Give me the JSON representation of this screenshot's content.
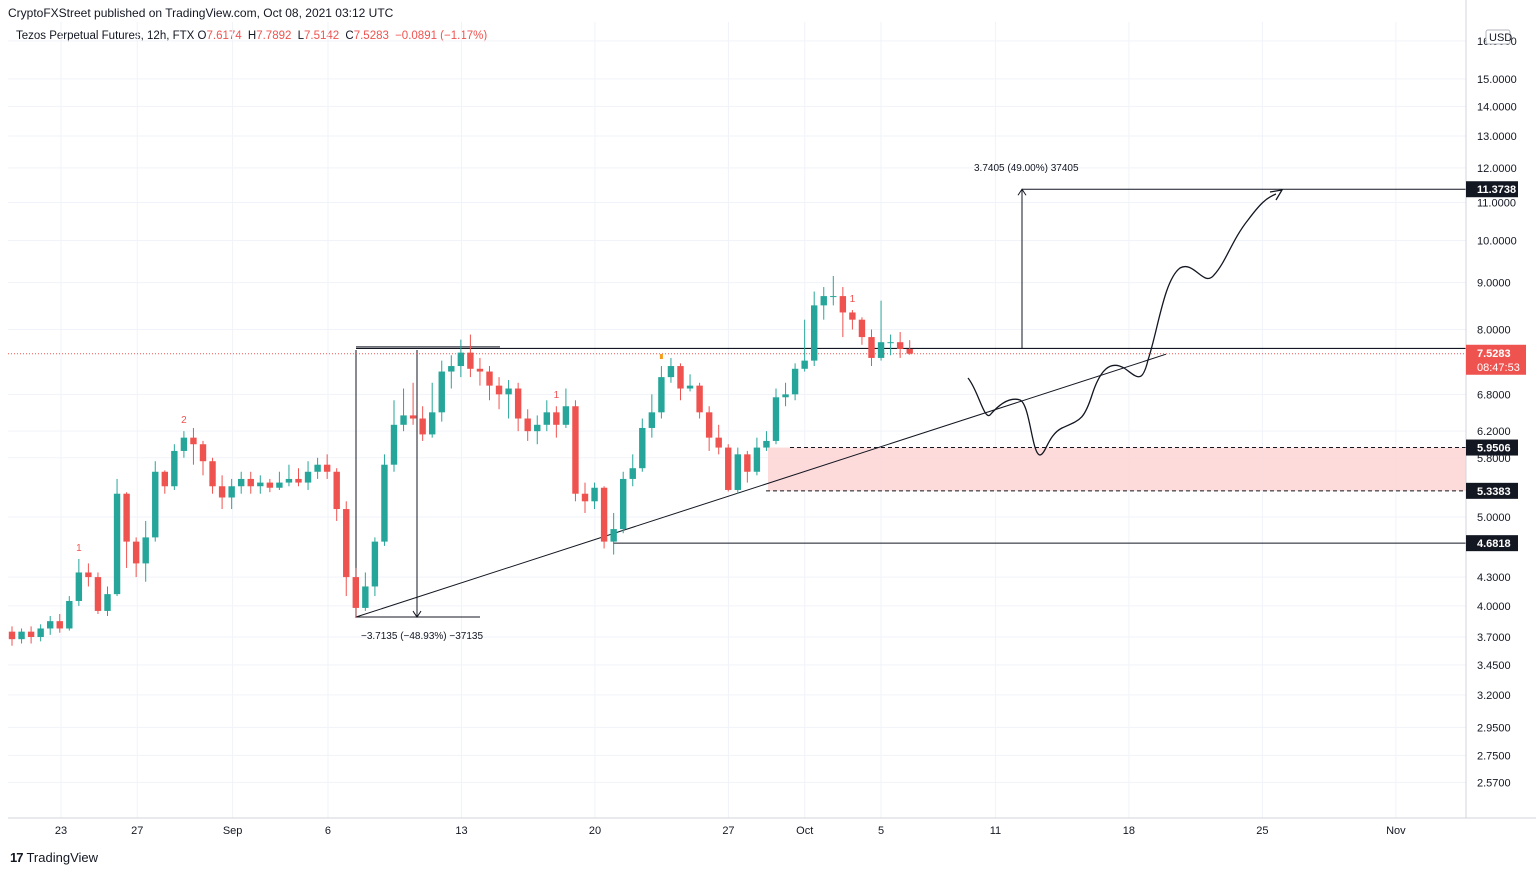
{
  "header": {
    "publisher": "CryptoFXStreet published on TradingView.com, Oct 08, 2021 03:12 UTC"
  },
  "legend": {
    "symbol": "Tezos Perpetual Futures, 12h, FTX",
    "open_label": "O",
    "open": "7.6174",
    "high_label": "H",
    "high": "7.7892",
    "low_label": "L",
    "low": "7.5142",
    "close_label": "C",
    "close": "7.5283",
    "change": "−0.0891 (−1.17%)"
  },
  "footer": {
    "brand": "TradingView",
    "logo_text": "17"
  },
  "colors": {
    "up": "#26a69a",
    "down": "#ef5350",
    "zone": "#fdd5d5",
    "price_line": "#ef5350"
  },
  "chart_data": {
    "type": "candlestick",
    "currency": "USD",
    "y_scale": "log",
    "ylim": [
      2.35,
      17.3
    ],
    "y_ticks": [
      "2.5700",
      "2.7500",
      "2.9500",
      "3.2000",
      "3.4500",
      "3.7000",
      "4.0000",
      "4.3000",
      "4.6818",
      "5.0000",
      "5.3383",
      "5.8000",
      "5.9506",
      "6.2000",
      "6.8000",
      "7.5283",
      "8.0000",
      "9.0000",
      "10.0000",
      "11.0000",
      "11.3738",
      "12.0000",
      "13.0000",
      "14.0000",
      "15.0000",
      "16.5000"
    ],
    "x_ticks": [
      {
        "label": "23",
        "day": 0
      },
      {
        "label": "27",
        "day": 4
      },
      {
        "label": "Sep",
        "day": 9
      },
      {
        "label": "6",
        "day": 14
      },
      {
        "label": "13",
        "day": 21
      },
      {
        "label": "20",
        "day": 28
      },
      {
        "label": "27",
        "day": 35
      },
      {
        "label": "Oct",
        "day": 39
      },
      {
        "label": "5",
        "day": 43
      },
      {
        "label": "11",
        "day": 49
      },
      {
        "label": "18",
        "day": 56
      },
      {
        "label": "25",
        "day": 63
      },
      {
        "label": "Nov",
        "day": 70
      }
    ],
    "candles": [
      [
        3.75,
        3.68,
        3.8,
        3.62
      ],
      [
        3.68,
        3.75,
        3.78,
        3.64
      ],
      [
        3.75,
        3.7,
        3.8,
        3.64
      ],
      [
        3.7,
        3.78,
        3.82,
        3.66
      ],
      [
        3.78,
        3.85,
        3.9,
        3.72
      ],
      [
        3.85,
        3.78,
        3.92,
        3.74
      ],
      [
        3.78,
        4.05,
        4.1,
        3.76
      ],
      [
        4.05,
        4.35,
        4.5,
        4.0
      ],
      [
        4.35,
        4.3,
        4.45,
        4.2
      ],
      [
        4.3,
        3.95,
        4.35,
        3.92
      ],
      [
        3.95,
        4.12,
        4.2,
        3.9
      ],
      [
        4.12,
        5.3,
        5.5,
        4.1
      ],
      [
        5.3,
        4.7,
        5.32,
        4.4
      ],
      [
        4.7,
        4.45,
        4.75,
        4.3
      ],
      [
        4.45,
        4.75,
        4.95,
        4.25
      ],
      [
        4.75,
        5.6,
        5.75,
        4.7
      ],
      [
        5.6,
        5.4,
        5.62,
        5.3
      ],
      [
        5.4,
        5.9,
        6.0,
        5.35
      ],
      [
        5.9,
        6.1,
        6.2,
        5.8
      ],
      [
        6.1,
        6.0,
        6.25,
        5.7
      ],
      [
        6.0,
        5.75,
        6.05,
        5.55
      ],
      [
        5.75,
        5.4,
        5.8,
        5.3
      ],
      [
        5.4,
        5.25,
        5.55,
        5.1
      ],
      [
        5.25,
        5.4,
        5.5,
        5.1
      ],
      [
        5.4,
        5.5,
        5.6,
        5.3
      ],
      [
        5.5,
        5.4,
        5.6,
        5.3
      ],
      [
        5.4,
        5.45,
        5.55,
        5.3
      ],
      [
        5.45,
        5.38,
        5.5,
        5.32
      ],
      [
        5.38,
        5.45,
        5.6,
        5.35
      ],
      [
        5.45,
        5.5,
        5.7,
        5.4
      ],
      [
        5.5,
        5.45,
        5.65,
        5.4
      ],
      [
        5.45,
        5.6,
        5.75,
        5.35
      ],
      [
        5.6,
        5.7,
        5.8,
        5.5
      ],
      [
        5.7,
        5.6,
        5.85,
        5.5
      ],
      [
        5.6,
        5.1,
        5.65,
        4.95
      ],
      [
        5.1,
        4.3,
        5.2,
        4.1
      ],
      [
        4.3,
        3.98,
        4.4,
        3.88
      ],
      [
        3.98,
        4.2,
        4.35,
        3.95
      ],
      [
        4.2,
        4.7,
        4.75,
        4.1
      ],
      [
        4.7,
        5.7,
        5.85,
        4.65
      ],
      [
        5.7,
        6.3,
        6.7,
        5.6
      ],
      [
        6.3,
        6.45,
        6.9,
        6.2
      ],
      [
        6.45,
        6.4,
        7.0,
        6.3
      ],
      [
        6.4,
        6.15,
        6.6,
        6.05
      ],
      [
        6.15,
        6.5,
        7.0,
        6.1
      ],
      [
        6.5,
        7.2,
        7.4,
        6.35
      ],
      [
        7.2,
        7.3,
        7.5,
        6.9
      ],
      [
        7.3,
        7.55,
        7.8,
        7.1
      ],
      [
        7.55,
        7.25,
        7.9,
        7.1
      ],
      [
        7.25,
        7.2,
        7.45,
        6.95
      ],
      [
        7.2,
        6.95,
        7.3,
        6.7
      ],
      [
        6.95,
        6.8,
        7.1,
        6.55
      ],
      [
        6.8,
        6.9,
        7.05,
        6.4
      ],
      [
        6.9,
        6.4,
        7.0,
        6.2
      ],
      [
        6.4,
        6.2,
        6.55,
        6.05
      ],
      [
        6.2,
        6.3,
        6.45,
        6.0
      ],
      [
        6.3,
        6.5,
        6.7,
        6.2
      ],
      [
        6.5,
        6.3,
        6.6,
        6.1
      ],
      [
        6.3,
        6.6,
        6.9,
        6.25
      ],
      [
        6.6,
        5.3,
        6.7,
        5.2
      ],
      [
        5.3,
        5.2,
        5.45,
        5.05
      ],
      [
        5.2,
        5.38,
        5.45,
        5.1
      ],
      [
        5.38,
        4.7,
        5.4,
        4.62
      ],
      [
        4.7,
        4.85,
        5.05,
        4.55
      ],
      [
        4.85,
        5.5,
        5.6,
        4.8
      ],
      [
        5.5,
        5.65,
        5.85,
        5.4
      ],
      [
        5.65,
        6.25,
        6.4,
        5.6
      ],
      [
        6.25,
        6.5,
        6.8,
        6.1
      ],
      [
        6.5,
        7.1,
        7.3,
        6.4
      ],
      [
        7.1,
        7.3,
        7.45,
        7.0
      ],
      [
        7.3,
        6.9,
        7.35,
        6.7
      ],
      [
        6.9,
        6.95,
        7.15,
        6.85
      ],
      [
        6.95,
        6.5,
        7.0,
        6.4
      ],
      [
        6.5,
        6.1,
        6.6,
        5.9
      ],
      [
        6.1,
        5.95,
        6.3,
        5.85
      ],
      [
        5.95,
        5.35,
        6.0,
        5.33
      ],
      [
        5.35,
        5.85,
        5.95,
        5.3
      ],
      [
        5.85,
        5.6,
        5.9,
        5.45
      ],
      [
        5.6,
        5.95,
        6.1,
        5.55
      ],
      [
        5.95,
        6.05,
        6.2,
        5.9
      ],
      [
        6.05,
        6.75,
        6.9,
        6.0
      ],
      [
        6.75,
        6.8,
        7.0,
        6.6
      ],
      [
        6.8,
        7.25,
        7.35,
        6.7
      ],
      [
        7.25,
        7.4,
        8.2,
        7.2
      ],
      [
        7.4,
        8.5,
        8.8,
        7.3
      ],
      [
        8.5,
        8.7,
        8.9,
        8.2
      ],
      [
        8.7,
        8.7,
        9.15,
        8.5
      ],
      [
        8.7,
        8.35,
        8.9,
        7.85
      ],
      [
        8.35,
        8.2,
        8.4,
        8.0
      ],
      [
        8.2,
        7.85,
        8.25,
        7.7
      ],
      [
        7.85,
        7.45,
        8.0,
        7.3
      ],
      [
        7.45,
        7.75,
        8.6,
        7.4
      ],
      [
        7.75,
        7.75,
        7.9,
        7.5
      ],
      [
        7.75,
        7.62,
        7.95,
        7.45
      ],
      [
        7.62,
        7.53,
        7.79,
        7.51
      ]
    ],
    "td_labels": [
      {
        "text": "1",
        "candle": 7,
        "color": "red"
      },
      {
        "text": "2",
        "candle": 18,
        "color": "red"
      },
      {
        "text": "1",
        "candle": 57,
        "color": "red"
      },
      {
        "text": "1",
        "candle": 88,
        "color": "red"
      },
      {
        "text": "1",
        "candle": 107,
        "color": "red"
      },
      {
        "text": "1",
        "candle": 131,
        "color": "red"
      }
    ],
    "td_labels_orange": [
      {
        "candle": 68
      },
      {
        "candle": 99
      }
    ],
    "levels": [
      {
        "value": 11.3738,
        "label": "11.3738"
      },
      {
        "value": 5.9506,
        "label": "5.9506"
      },
      {
        "value": 5.3383,
        "label": "5.3383"
      },
      {
        "value": 4.6818,
        "label": "4.6818"
      }
    ],
    "current_price": {
      "value": 7.5283,
      "label": "7.5283",
      "countdown": "08:47:53"
    },
    "measure_up": {
      "from": 7.63,
      "to": 11.3738,
      "text": "3.7405 (49.00%) 37405"
    },
    "measure_down": {
      "from": 7.6,
      "to": 3.89,
      "text": "−3.7135 (−48.93%) −37135"
    },
    "resistance": 7.63,
    "demand_zone": [
      5.3383,
      5.9506
    ]
  }
}
